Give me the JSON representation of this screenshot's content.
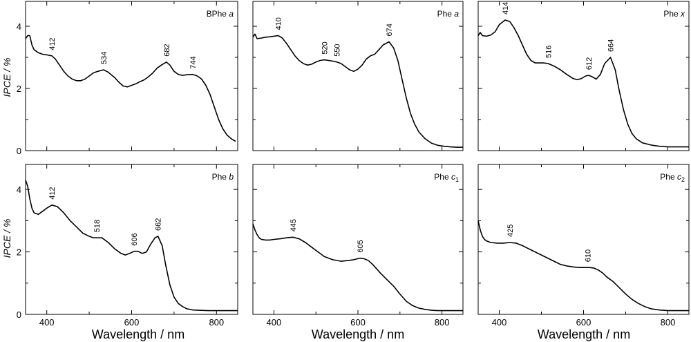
{
  "figure": {
    "ylabel": "IPCE / %",
    "xlabel": "Wavelength / nm",
    "x_ticks": [
      400,
      600,
      800
    ],
    "y_ticks": [
      0,
      2,
      4
    ],
    "xlim": [
      350,
      850
    ],
    "ylim": [
      0,
      4.8
    ],
    "line_color": "#000000",
    "background": "#ffffff"
  },
  "chart_data": [
    {
      "type": "line",
      "name": "BPhe a",
      "title_main": "BPhe",
      "title_sub": "a",
      "x": [
        350,
        355,
        360,
        365,
        370,
        380,
        390,
        400,
        412,
        420,
        430,
        440,
        450,
        460,
        470,
        480,
        490,
        500,
        510,
        520,
        534,
        545,
        560,
        570,
        580,
        590,
        600,
        610,
        620,
        625,
        630,
        640,
        650,
        660,
        670,
        682,
        690,
        700,
        710,
        720,
        730,
        744,
        755,
        765,
        775,
        785,
        795,
        805,
        815,
        825,
        835,
        845
      ],
      "y": [
        3.6,
        3.7,
        3.7,
        3.4,
        3.25,
        3.15,
        3.1,
        3.08,
        3.05,
        2.95,
        2.75,
        2.55,
        2.4,
        2.3,
        2.25,
        2.25,
        2.3,
        2.4,
        2.5,
        2.55,
        2.6,
        2.52,
        2.35,
        2.2,
        2.08,
        2.05,
        2.1,
        2.15,
        2.22,
        2.25,
        2.28,
        2.38,
        2.5,
        2.65,
        2.75,
        2.85,
        2.75,
        2.55,
        2.45,
        2.42,
        2.44,
        2.45,
        2.4,
        2.3,
        2.1,
        1.8,
        1.4,
        1.0,
        0.7,
        0.5,
        0.38,
        0.3
      ],
      "annotations": [
        {
          "label": "412",
          "x": 412,
          "y": 3.05
        },
        {
          "label": "534",
          "x": 534,
          "y": 2.6
        },
        {
          "label": "682",
          "x": 682,
          "y": 2.85
        },
        {
          "label": "744",
          "x": 744,
          "y": 2.45
        }
      ]
    },
    {
      "type": "line",
      "name": "Phe a",
      "title_main": "Phe",
      "title_sub": "a",
      "x": [
        350,
        355,
        360,
        370,
        380,
        390,
        400,
        410,
        420,
        430,
        440,
        450,
        460,
        470,
        480,
        490,
        500,
        510,
        520,
        530,
        540,
        550,
        560,
        570,
        580,
        590,
        600,
        610,
        620,
        630,
        640,
        650,
        660,
        674,
        685,
        695,
        705,
        715,
        725,
        735,
        745,
        760,
        775,
        790,
        805,
        820,
        835,
        850
      ],
      "y": [
        3.65,
        3.75,
        3.6,
        3.62,
        3.65,
        3.66,
        3.68,
        3.7,
        3.62,
        3.45,
        3.25,
        3.05,
        2.9,
        2.8,
        2.75,
        2.78,
        2.85,
        2.9,
        2.92,
        2.9,
        2.88,
        2.85,
        2.8,
        2.7,
        2.6,
        2.55,
        2.62,
        2.75,
        2.95,
        3.05,
        3.1,
        3.25,
        3.4,
        3.5,
        3.3,
        2.9,
        2.3,
        1.7,
        1.2,
        0.85,
        0.6,
        0.38,
        0.24,
        0.17,
        0.14,
        0.12,
        0.11,
        0.11
      ],
      "annotations": [
        {
          "label": "410",
          "x": 410,
          "y": 3.7
        },
        {
          "label": "520",
          "x": 520,
          "y": 2.92
        },
        {
          "label": "550",
          "x": 550,
          "y": 2.85
        },
        {
          "label": "674",
          "x": 674,
          "y": 3.5
        }
      ]
    },
    {
      "type": "line",
      "name": "Phe x",
      "title_main": "Phe",
      "title_sub": "x",
      "x": [
        350,
        355,
        360,
        370,
        380,
        390,
        400,
        414,
        425,
        435,
        445,
        455,
        465,
        475,
        485,
        495,
        505,
        516,
        530,
        545,
        560,
        575,
        585,
        595,
        605,
        612,
        620,
        630,
        640,
        650,
        664,
        675,
        685,
        695,
        705,
        715,
        725,
        740,
        760,
        780,
        800,
        820,
        840,
        850
      ],
      "y": [
        3.7,
        3.8,
        3.7,
        3.68,
        3.72,
        3.82,
        4.05,
        4.2,
        4.15,
        3.95,
        3.7,
        3.4,
        3.1,
        2.9,
        2.82,
        2.82,
        2.82,
        2.8,
        2.72,
        2.6,
        2.45,
        2.32,
        2.28,
        2.32,
        2.4,
        2.42,
        2.38,
        2.3,
        2.45,
        2.8,
        3.0,
        2.6,
        1.9,
        1.3,
        0.85,
        0.55,
        0.38,
        0.25,
        0.18,
        0.14,
        0.12,
        0.12,
        0.12,
        0.12
      ],
      "annotations": [
        {
          "label": "414",
          "x": 414,
          "y": 4.2
        },
        {
          "label": "516",
          "x": 516,
          "y": 2.8
        },
        {
          "label": "612",
          "x": 612,
          "y": 2.42
        },
        {
          "label": "664",
          "x": 664,
          "y": 3.0
        }
      ]
    },
    {
      "type": "line",
      "name": "Phe b",
      "title_main": "Phe",
      "title_sub": "b",
      "x": [
        350,
        355,
        360,
        365,
        370,
        380,
        390,
        400,
        412,
        425,
        440,
        455,
        470,
        485,
        500,
        510,
        518,
        530,
        545,
        560,
        575,
        585,
        595,
        606,
        615,
        625,
        635,
        645,
        655,
        662,
        672,
        680,
        690,
        700,
        710,
        720,
        730,
        745,
        760,
        780,
        800,
        820,
        840,
        850
      ],
      "y": [
        4.3,
        4.1,
        3.7,
        3.4,
        3.25,
        3.2,
        3.3,
        3.4,
        3.5,
        3.45,
        3.25,
        3.0,
        2.8,
        2.6,
        2.5,
        2.45,
        2.45,
        2.45,
        2.3,
        2.1,
        1.95,
        1.9,
        1.95,
        2.02,
        2.02,
        1.95,
        2.0,
        2.25,
        2.45,
        2.5,
        2.2,
        1.6,
        0.95,
        0.55,
        0.35,
        0.25,
        0.18,
        0.14,
        0.13,
        0.12,
        0.12,
        0.12,
        0.12,
        0.12
      ],
      "annotations": [
        {
          "label": "412",
          "x": 412,
          "y": 3.5
        },
        {
          "label": "518",
          "x": 518,
          "y": 2.45
        },
        {
          "label": "606",
          "x": 606,
          "y": 2.02
        },
        {
          "label": "662",
          "x": 662,
          "y": 2.5
        }
      ]
    },
    {
      "type": "line",
      "name": "Phe c1",
      "title_main": "Phe",
      "title_sub": "c",
      "title_subscript": "1",
      "x": [
        350,
        355,
        360,
        365,
        370,
        380,
        390,
        400,
        415,
        430,
        445,
        460,
        475,
        490,
        505,
        520,
        540,
        560,
        575,
        590,
        605,
        615,
        625,
        635,
        645,
        655,
        670,
        685,
        700,
        715,
        730,
        745,
        760,
        775,
        790,
        810,
        830,
        850
      ],
      "y": [
        2.9,
        2.7,
        2.55,
        2.45,
        2.4,
        2.38,
        2.38,
        2.4,
        2.42,
        2.45,
        2.47,
        2.42,
        2.3,
        2.15,
        2.0,
        1.85,
        1.75,
        1.7,
        1.72,
        1.75,
        1.8,
        1.78,
        1.72,
        1.6,
        1.45,
        1.3,
        1.1,
        0.9,
        0.65,
        0.42,
        0.28,
        0.2,
        0.16,
        0.13,
        0.12,
        0.12,
        0.12,
        0.12
      ],
      "annotations": [
        {
          "label": "445",
          "x": 445,
          "y": 2.47
        },
        {
          "label": "605",
          "x": 605,
          "y": 1.8
        }
      ]
    },
    {
      "type": "line",
      "name": "Phe c2",
      "title_main": "Phe",
      "title_sub": "c",
      "title_subscript": "2",
      "x": [
        350,
        355,
        360,
        365,
        370,
        380,
        395,
        410,
        425,
        440,
        455,
        470,
        485,
        500,
        515,
        530,
        545,
        560,
        575,
        590,
        605,
        615,
        625,
        635,
        645,
        655,
        670,
        685,
        700,
        715,
        730,
        745,
        760,
        780,
        800,
        825,
        850
      ],
      "y": [
        3.0,
        2.7,
        2.5,
        2.4,
        2.35,
        2.3,
        2.28,
        2.28,
        2.3,
        2.28,
        2.2,
        2.1,
        2.0,
        1.9,
        1.8,
        1.7,
        1.6,
        1.55,
        1.52,
        1.5,
        1.5,
        1.5,
        1.48,
        1.42,
        1.33,
        1.2,
        1.05,
        0.85,
        0.65,
        0.48,
        0.35,
        0.25,
        0.18,
        0.14,
        0.12,
        0.12,
        0.12
      ],
      "annotations": [
        {
          "label": "425",
          "x": 425,
          "y": 2.3
        },
        {
          "label": "610",
          "x": 610,
          "y": 1.5
        }
      ]
    }
  ]
}
